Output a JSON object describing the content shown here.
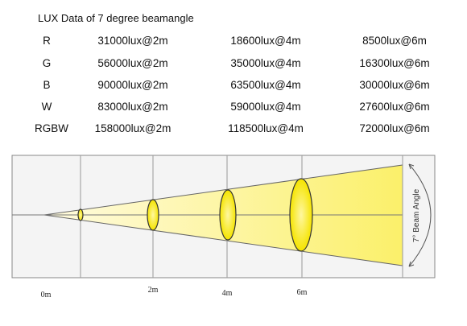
{
  "title": "LUX Data of 7 degree beamangle",
  "table": {
    "rows": [
      [
        "R",
        "31000lux@2m",
        "18600lux@4m",
        "8500lux@6m"
      ],
      [
        "G",
        "56000lux@2m",
        "35000lux@4m",
        "16300lux@6m"
      ],
      [
        "B",
        "90000lux@2m",
        "63500lux@4m",
        "30000lux@6m"
      ],
      [
        "W",
        "83000lux@2m",
        "59000lux@4m",
        "27600lux@6m"
      ],
      [
        "RGBW",
        "158000lux@2m",
        "118500lux@4m",
        "72000lux@6m"
      ]
    ]
  },
  "diagram": {
    "distance_labels": [
      "0m",
      "2m",
      "4m",
      "6m"
    ],
    "beam_angle_label": "7° Beam Angle"
  }
}
